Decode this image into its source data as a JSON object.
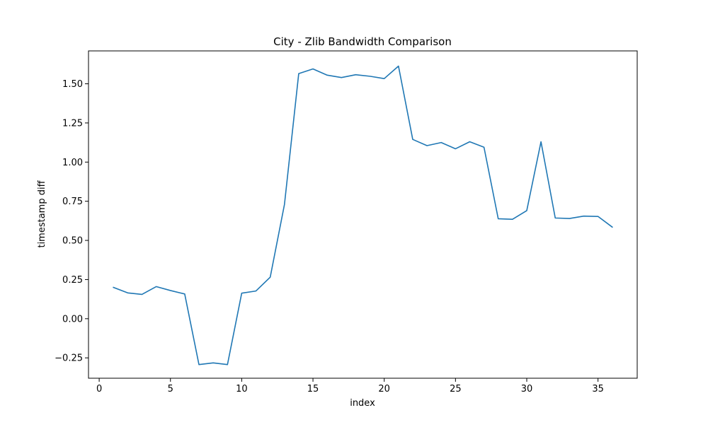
{
  "chart_data": {
    "type": "line",
    "title": "City - Zlib Bandwidth Comparison",
    "xlabel": "index",
    "ylabel": "timestamp diff",
    "xlim": [
      -0.75,
      37.75
    ],
    "ylim": [
      -0.38,
      1.71
    ],
    "xticks": [
      0,
      5,
      10,
      15,
      20,
      25,
      30,
      35
    ],
    "xtick_labels": [
      "0",
      "5",
      "10",
      "15",
      "20",
      "25",
      "30",
      "35"
    ],
    "yticks": [
      -0.25,
      0.0,
      0.25,
      0.5,
      0.75,
      1.0,
      1.25,
      1.5
    ],
    "ytick_labels": [
      "−0.25",
      "0.00",
      "0.25",
      "0.50",
      "0.75",
      "1.00",
      "1.25",
      "1.50"
    ],
    "grid": false,
    "series": [
      {
        "color": "#1f77b4",
        "x": [
          1,
          2,
          3,
          4,
          5,
          6,
          7,
          8,
          9,
          10,
          11,
          12,
          13,
          14,
          15,
          16,
          17,
          18,
          19,
          20,
          21,
          22,
          23,
          24,
          25,
          26,
          27,
          28,
          29,
          30,
          31,
          32,
          33,
          34,
          35,
          36
        ],
        "y": [
          0.2,
          0.165,
          0.155,
          0.205,
          0.18,
          0.158,
          -0.293,
          -0.282,
          -0.293,
          0.163,
          0.177,
          0.265,
          0.73,
          1.565,
          1.595,
          1.555,
          1.54,
          1.558,
          1.548,
          1.533,
          1.613,
          1.145,
          1.105,
          1.125,
          1.085,
          1.13,
          1.095,
          0.638,
          0.635,
          0.69,
          1.13,
          0.643,
          0.64,
          0.655,
          0.653,
          0.585
        ]
      }
    ]
  }
}
